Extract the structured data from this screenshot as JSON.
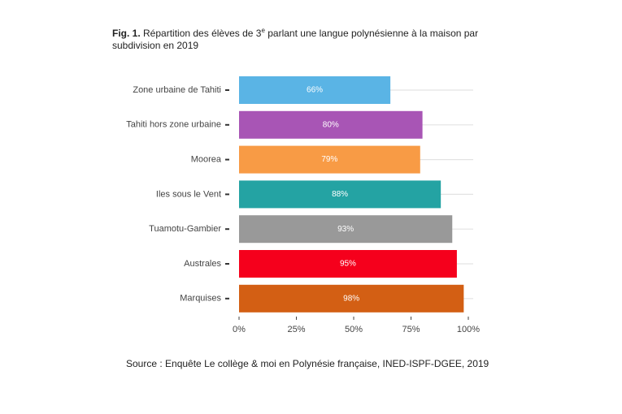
{
  "chart_data": {
    "type": "bar",
    "orientation": "horizontal",
    "title_prefix": "Fig. 1.",
    "title": "Répartition des élèves de 3",
    "title_sup": "e",
    "title_rest": " parlant une langue polynésienne à la maison par subdivision en 2019",
    "categories": [
      "Zone urbaine de Tahiti",
      "Tahiti hors zone urbaine",
      "Moorea",
      "Iles sous le Vent",
      "Tuamotu-Gambier",
      "Australes",
      "Marquises"
    ],
    "values": [
      66,
      80,
      79,
      88,
      93,
      95,
      98
    ],
    "value_labels": [
      "66%",
      "80%",
      "79%",
      "88%",
      "93%",
      "95%",
      "98%"
    ],
    "colors": [
      "#5ab4e5",
      "#a855b5",
      "#f89b45",
      "#24a3a3",
      "#999999",
      "#f5001c",
      "#d35f14"
    ],
    "xlim": [
      0,
      100
    ],
    "xticks": [
      {
        "value": 0,
        "label": "0%"
      },
      {
        "value": 25,
        "label": "25%"
      },
      {
        "value": 50,
        "label": "50%"
      },
      {
        "value": 75,
        "label": "75%"
      },
      {
        "value": 100,
        "label": "100%"
      }
    ],
    "grid": true,
    "source": "Source : Enquête Le collège & moi en Polynésie française, INED-ISPF-DGEE, 2019"
  }
}
